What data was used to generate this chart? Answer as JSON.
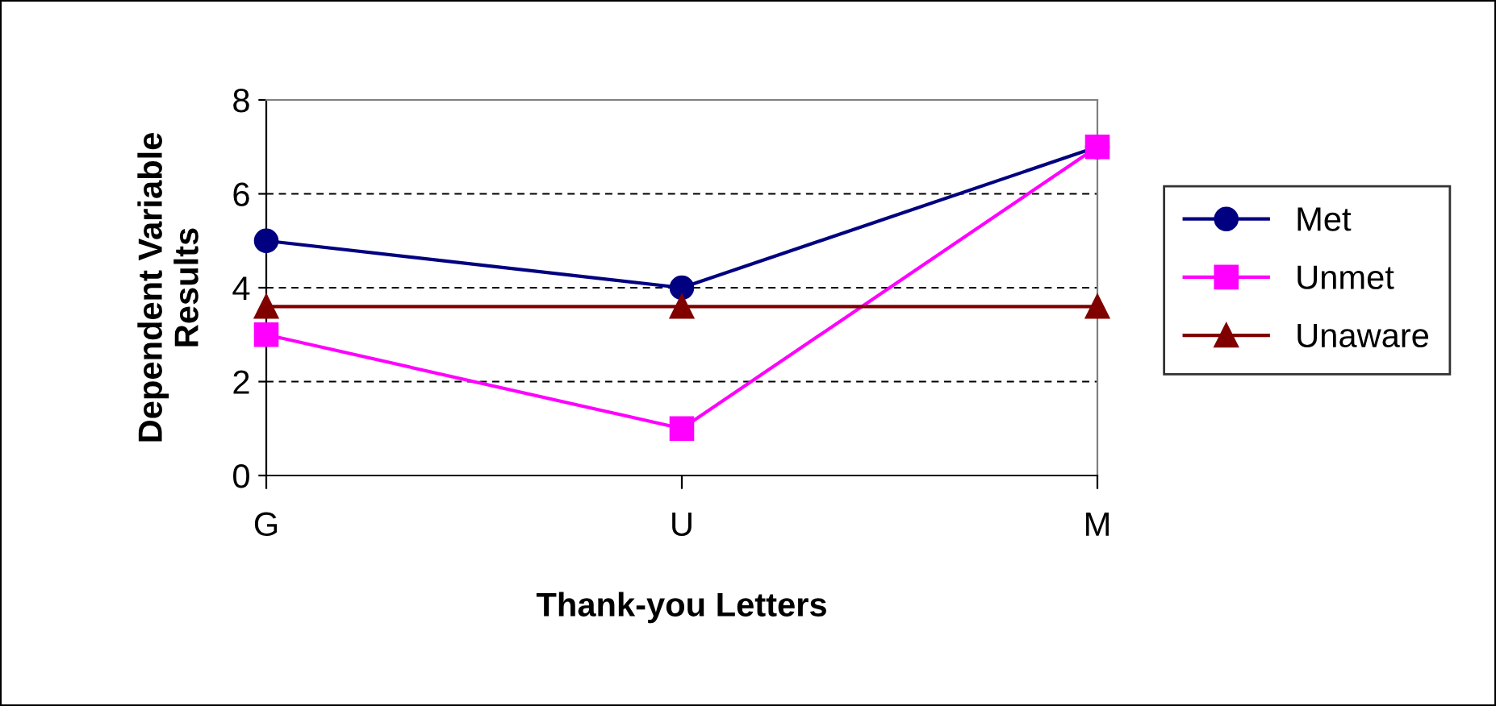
{
  "chart_data": {
    "type": "line",
    "xlabel": "Thank-you Letters",
    "ylabel": "Dependent Variable\nResults",
    "categories": [
      "G",
      "U",
      "M"
    ],
    "series": [
      {
        "name": "Met",
        "color": "#000080",
        "marker": "circle",
        "values": [
          5,
          4,
          7
        ]
      },
      {
        "name": "Unmet",
        "color": "#ff00ff",
        "marker": "square",
        "values": [
          3,
          1,
          7
        ]
      },
      {
        "name": "Unaware",
        "color": "#800000",
        "marker": "triangle",
        "values": [
          3.6,
          3.6,
          3.6
        ]
      }
    ],
    "ylim": [
      0,
      8
    ],
    "yticks": [
      0,
      2,
      4,
      6,
      8
    ],
    "grid": "y",
    "legend": "right",
    "line_style": "solid"
  }
}
